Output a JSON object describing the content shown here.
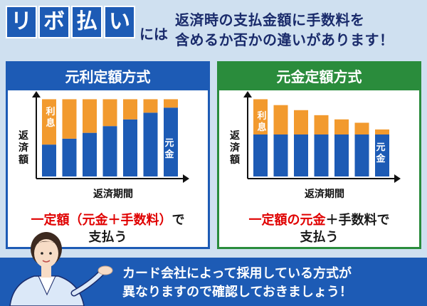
{
  "title": {
    "chars": [
      "リ",
      "ボ",
      "払",
      "い"
    ],
    "suffix": "には",
    "line1": "返済時の支払金額に手数料を",
    "line2": "含めるか否かの違いがあります！"
  },
  "colors": {
    "blue": "#1d5bb5",
    "green": "#2a8c3c",
    "orange": "#f29a2e",
    "red": "#e00000",
    "background": "#cfe0f0"
  },
  "panels": [
    {
      "id": "ganri",
      "title": "元利定額方式",
      "y_label": [
        "返",
        "済",
        "額"
      ],
      "x_label": "返済期間",
      "interest_label": [
        "利",
        "息"
      ],
      "principal_label": [
        "元",
        "金"
      ],
      "caption_line1_red": "一定額（元金＋手数料）",
      "caption_line1_black": "で",
      "caption_line2": "支払う"
    },
    {
      "id": "gankin",
      "title": "元金定額方式",
      "y_label": [
        "返",
        "済",
        "額"
      ],
      "x_label": "返済期間",
      "interest_label": [
        "利",
        "息"
      ],
      "principal_label": [
        "元",
        "金"
      ],
      "caption_line1_red": "一定額の元金",
      "caption_line1_black": "＋手数料で",
      "caption_line2": "支払う"
    }
  ],
  "chart_data": [
    {
      "type": "bar",
      "stacked": true,
      "title": "元利定額方式",
      "xlabel": "返済期間",
      "ylabel": "返済額",
      "categories": [
        "1",
        "2",
        "3",
        "4",
        "5",
        "6",
        "7"
      ],
      "series": [
        {
          "name": "元金",
          "values": [
            38,
            45,
            52,
            60,
            68,
            76,
            82
          ]
        },
        {
          "name": "利息",
          "values": [
            54,
            47,
            40,
            32,
            24,
            16,
            10
          ]
        }
      ],
      "ylim": [
        0,
        100
      ]
    },
    {
      "type": "bar",
      "stacked": true,
      "title": "元金定額方式",
      "xlabel": "返済期間",
      "ylabel": "返済額",
      "categories": [
        "1",
        "2",
        "3",
        "4",
        "5",
        "6",
        "7"
      ],
      "series": [
        {
          "name": "元金",
          "values": [
            50,
            50,
            50,
            50,
            50,
            50,
            50
          ]
        },
        {
          "name": "利息",
          "values": [
            42,
            35,
            29,
            23,
            18,
            14,
            6
          ]
        }
      ],
      "ylim": [
        0,
        100
      ]
    }
  ],
  "footer": {
    "line1": "カード会社によって採用している方式が",
    "line2": "異なりますので確認しておきましょう！"
  }
}
